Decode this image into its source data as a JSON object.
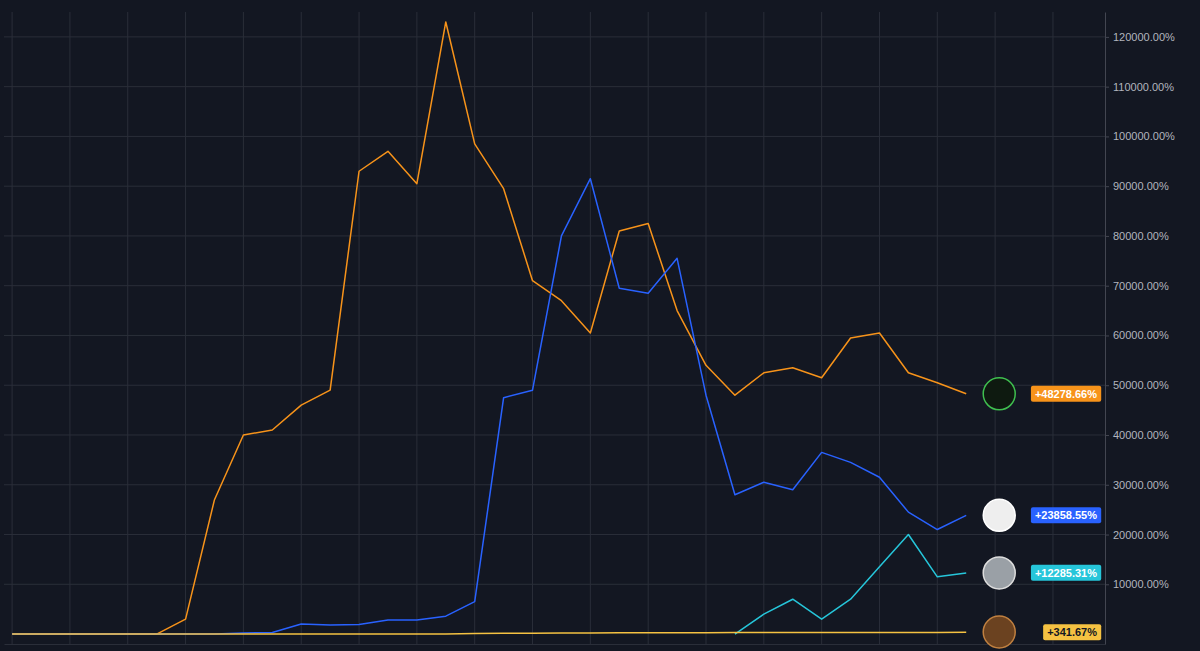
{
  "chart_data": {
    "type": "line",
    "x": [
      0,
      1,
      2,
      3,
      4,
      5,
      6,
      7,
      8,
      9,
      10,
      11,
      12,
      13,
      14,
      15,
      16,
      17,
      18,
      19,
      20,
      21,
      22,
      23,
      24,
      25,
      26,
      27,
      28,
      29,
      30,
      31,
      32,
      33
    ],
    "xlim": [
      -0.28,
      37.8
    ],
    "xticks": [
      0,
      2,
      4,
      6,
      8,
      10,
      12,
      14,
      16,
      18,
      20,
      22,
      24,
      26,
      28,
      30,
      32,
      34,
      36
    ],
    "ylim": [
      -2000,
      125000
    ],
    "yticks": [
      {
        "value": 10000,
        "label": "10000.00%"
      },
      {
        "value": 20000,
        "label": "20000.00%"
      },
      {
        "value": 30000,
        "label": "30000.00%"
      },
      {
        "value": 40000,
        "label": "40000.00%"
      },
      {
        "value": 50000,
        "label": "50000.00%"
      },
      {
        "value": 60000,
        "label": "60000.00%"
      },
      {
        "value": 70000,
        "label": "70000.00%"
      },
      {
        "value": 80000,
        "label": "80000.00%"
      },
      {
        "value": 90000,
        "label": "90000.00%"
      },
      {
        "value": 100000,
        "label": "100000.00%"
      },
      {
        "value": 110000,
        "label": "110000.00%"
      },
      {
        "value": 120000,
        "label": "120000.00%"
      }
    ],
    "grid": true,
    "tick_labels": "y",
    "data_labels": true,
    "series": [
      {
        "color": "#f7931a",
        "values": [
          0,
          0,
          0,
          0,
          0,
          0,
          3000,
          27000,
          40000,
          41000,
          46000,
          49000,
          93000,
          97000,
          90500,
          123000,
          98500,
          89500,
          71000,
          67000,
          60500,
          81000,
          82500,
          65000,
          54000,
          48000,
          52500,
          53500,
          51500,
          59500,
          60500,
          52500,
          50500,
          48278.66
        ],
        "value_labels": [
          null,
          null,
          null,
          null,
          null,
          null,
          null,
          null,
          null,
          null,
          null,
          null,
          null,
          null,
          null,
          null,
          null,
          null,
          null,
          null,
          null,
          null,
          null,
          null,
          null,
          null,
          null,
          null,
          null,
          null,
          null,
          null,
          null,
          "+48278.66%"
        ]
      },
      {
        "color": "#2962ff",
        "values": [
          0,
          0,
          0,
          0,
          0,
          0,
          0,
          0,
          200,
          300,
          2000,
          1800,
          1900,
          2800,
          2800,
          3600,
          6500,
          47500,
          49000,
          80000,
          91500,
          69500,
          68500,
          75500,
          48000,
          28000,
          30500,
          29000,
          36500,
          34500,
          31500,
          24500,
          21000,
          23858.55
        ],
        "value_labels": [
          null,
          null,
          null,
          null,
          null,
          null,
          null,
          null,
          null,
          null,
          null,
          null,
          null,
          null,
          null,
          null,
          null,
          null,
          null,
          null,
          null,
          null,
          null,
          null,
          null,
          null,
          null,
          null,
          null,
          null,
          null,
          null,
          null,
          "+23858.55%"
        ]
      },
      {
        "color": "#26c6da",
        "values": [
          null,
          null,
          null,
          null,
          null,
          null,
          null,
          null,
          null,
          null,
          null,
          null,
          null,
          null,
          null,
          null,
          null,
          null,
          null,
          null,
          null,
          null,
          null,
          null,
          null,
          0,
          4000,
          7000,
          3000,
          7000,
          13500,
          20000,
          11500,
          12285.31
        ],
        "value_labels": [
          null,
          null,
          null,
          null,
          null,
          null,
          null,
          null,
          null,
          null,
          null,
          null,
          null,
          null,
          null,
          null,
          null,
          null,
          null,
          null,
          null,
          null,
          null,
          null,
          null,
          null,
          null,
          null,
          null,
          null,
          null,
          null,
          null,
          "+12285.31%"
        ]
      },
      {
        "color": "#f5c242",
        "values": [
          0,
          0,
          0,
          0,
          0,
          0,
          0,
          0,
          0,
          0,
          0,
          0,
          0,
          0,
          0,
          0,
          100,
          150,
          150,
          200,
          200,
          250,
          250,
          250,
          250,
          300,
          300,
          300,
          300,
          300,
          300,
          300,
          300,
          341.67
        ],
        "value_labels": [
          null,
          null,
          null,
          null,
          null,
          null,
          null,
          null,
          null,
          null,
          null,
          null,
          null,
          null,
          null,
          null,
          null,
          null,
          null,
          null,
          null,
          null,
          null,
          null,
          null,
          null,
          null,
          null,
          null,
          null,
          null,
          null,
          null,
          "+341.67%"
        ]
      }
    ]
  }
}
